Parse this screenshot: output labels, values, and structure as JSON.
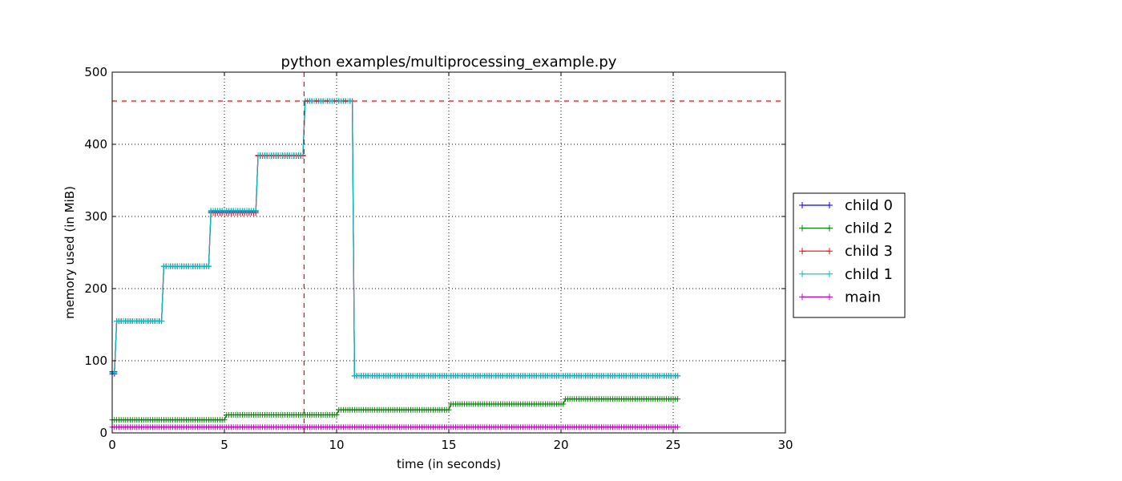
{
  "chart_data": {
    "type": "line",
    "title": "python examples/multiprocessing_example.py",
    "xlabel": "time (in seconds)",
    "ylabel": "memory used (in MiB)",
    "xlim": [
      0,
      30
    ],
    "ylim": [
      0,
      500
    ],
    "x_ticks": [
      "0",
      "5",
      "10",
      "15",
      "20",
      "25",
      "30"
    ],
    "y_ticks": [
      "0",
      "100",
      "200",
      "300",
      "400",
      "500"
    ],
    "grid": true,
    "legend_position": "center-right, outside plot",
    "peak_marker": {
      "x": 8.55,
      "y": 460,
      "color": "#ff0000",
      "style": "dashed"
    },
    "series": [
      {
        "name": "child 0",
        "color": "#0000ff",
        "marker": "+",
        "steps": [
          [
            0.0,
            82
          ],
          [
            0.2,
            155
          ],
          [
            2.3,
            231
          ],
          [
            4.4,
            307
          ],
          [
            6.5,
            384
          ],
          [
            8.6,
            460
          ],
          [
            10.8,
            79
          ]
        ],
        "x_end": 25.2
      },
      {
        "name": "child 2",
        "color": "#008000",
        "marker": "+",
        "steps": [
          [
            0.0,
            18
          ],
          [
            5.05,
            25
          ],
          [
            10.05,
            32
          ],
          [
            15.1,
            40
          ],
          [
            20.15,
            47
          ]
        ],
        "x_end": 25.2
      },
      {
        "name": "child 3",
        "color": "#ff0000",
        "marker": "+",
        "steps": [
          [
            0.0,
            85
          ],
          [
            0.2,
            155
          ],
          [
            2.3,
            231
          ],
          [
            4.4,
            305
          ],
          [
            6.5,
            384
          ],
          [
            8.6,
            460
          ],
          [
            10.8,
            79
          ]
        ],
        "x_end": 25.2
      },
      {
        "name": "child 1",
        "color": "#00bfbf",
        "marker": "+",
        "steps": [
          [
            0.0,
            84
          ],
          [
            0.2,
            155
          ],
          [
            2.3,
            231
          ],
          [
            4.4,
            308
          ],
          [
            6.5,
            385
          ],
          [
            8.6,
            460
          ],
          [
            10.8,
            79
          ]
        ],
        "x_end": 25.2
      },
      {
        "name": "main",
        "color": "#bf00bf",
        "marker": "+",
        "steps": [
          [
            0.0,
            8
          ]
        ],
        "x_end": 25.2
      }
    ]
  }
}
